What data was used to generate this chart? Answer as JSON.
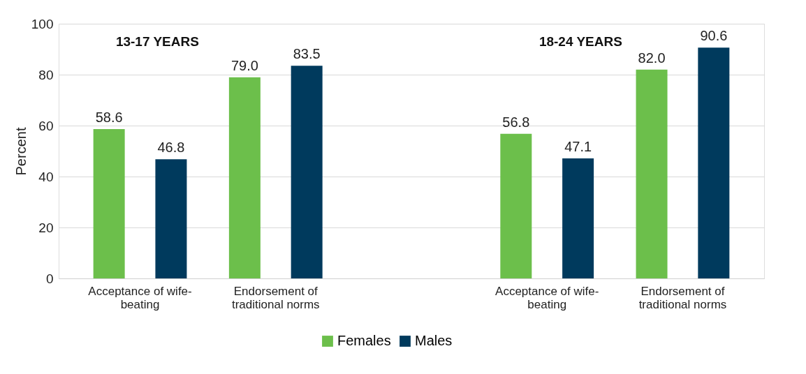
{
  "chart_data": {
    "type": "bar",
    "ylabel": "Percent",
    "categories": [
      "Acceptance of wife-beating",
      "Endorsement of traditional norms",
      null,
      "Acceptance of wife-beating",
      "Endorsement of traditional norms"
    ],
    "series": [
      {
        "name": "Females",
        "color": "#6cbf4b",
        "values": [
          58.6,
          79.0,
          null,
          56.8,
          82.0
        ],
        "value_labels": [
          "58.6",
          "79.0",
          null,
          "56.8",
          "82.0"
        ]
      },
      {
        "name": "Males",
        "color": "#003a5d",
        "values": [
          46.8,
          83.5,
          null,
          47.1,
          90.6
        ],
        "value_labels": [
          "46.8",
          "83.5",
          null,
          "47.1",
          "90.6"
        ]
      }
    ],
    "annotations": [
      "13-17 YEARS",
      "18-24 YEARS"
    ],
    "ylim": [
      0,
      100
    ],
    "yticks": [
      0,
      20,
      40,
      60,
      80,
      100
    ],
    "grid": "y",
    "legend": "bottom"
  }
}
